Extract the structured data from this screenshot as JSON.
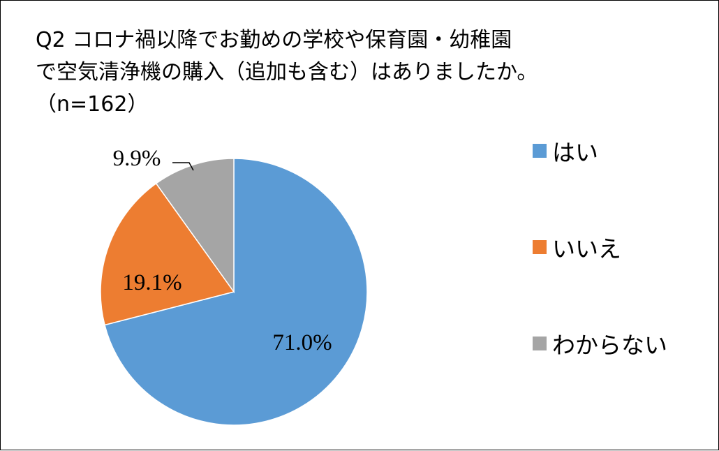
{
  "chart_data": {
    "type": "pie",
    "title_lines": [
      "Q2 コロナ禍以降でお勤めの学校や保育園・幼稚園",
      "で空気清浄機の購入（追加も含む）はありましたか。",
      "（n=162）"
    ],
    "slices": [
      {
        "name": "はい",
        "value": 71.0,
        "label": "71.0%",
        "color": "#5B9BD5"
      },
      {
        "name": "いいえ",
        "value": 19.1,
        "label": "19.1%",
        "color": "#ED7D31"
      },
      {
        "name": "わからない",
        "value": 9.9,
        "label": "9.9%",
        "color": "#A5A5A5"
      }
    ],
    "start_angle": "12 o'clock",
    "direction": "clockwise",
    "legend_position": "right"
  }
}
